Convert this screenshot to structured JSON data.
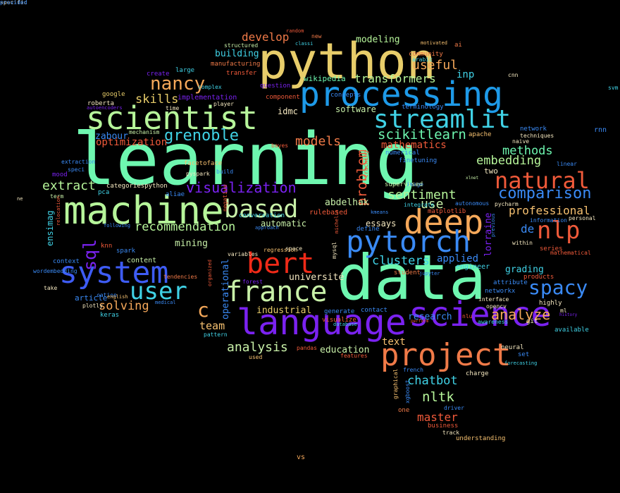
{
  "words": [
    {
      "t": "learning",
      "c": "#6ef7b0"
    },
    {
      "t": "data",
      "c": "#6ef7b0"
    },
    {
      "t": "python",
      "c": "#e8cd6a"
    },
    {
      "t": "machine",
      "c": "#b6f59a"
    },
    {
      "t": "processing",
      "c": "#1e9ae8"
    },
    {
      "t": "language",
      "c": "#7a22f0"
    },
    {
      "t": "science",
      "c": "#7a22f0"
    },
    {
      "t": "project",
      "c": "#f07a48"
    },
    {
      "t": "scientist",
      "c": "#b6f59a"
    },
    {
      "t": "deep",
      "c": "#f5a85a"
    },
    {
      "t": "pytorch",
      "c": "#3a8af5"
    },
    {
      "t": "system",
      "c": "#3e5cf5"
    },
    {
      "t": "bert",
      "c": "#f02a18"
    },
    {
      "t": "france",
      "c": "#c8f0a8"
    },
    {
      "t": "streamlit",
      "c": "#40d2e6"
    },
    {
      "t": "based",
      "c": "#c8f0a8"
    },
    {
      "t": "user",
      "c": "#40d2e6"
    },
    {
      "t": "nlp",
      "c": "#f05a3a"
    },
    {
      "t": "natural",
      "c": "#f05a3a"
    },
    {
      "t": "nancy",
      "c": "#f5a85a"
    },
    {
      "t": "spacy",
      "c": "#3a8af5"
    },
    {
      "t": "grenoble",
      "c": "#40d2e6"
    },
    {
      "t": "comparison",
      "c": "#3a8af5"
    },
    {
      "t": "visualization",
      "c": "#7a22f0"
    },
    {
      "t": "analyze",
      "c": "#f5a85a"
    },
    {
      "t": "scikitlearn",
      "c": "#6ef7b0"
    },
    {
      "t": "recommendation",
      "c": "#b6f59a"
    },
    {
      "t": "sentiment",
      "c": "#b6f59a"
    },
    {
      "t": "clusters",
      "c": "#40d2e6"
    },
    {
      "t": "analysis",
      "c": "#c8f0a8"
    },
    {
      "t": "embedding",
      "c": "#b6f59a"
    },
    {
      "t": "professional",
      "c": "#f5c070"
    },
    {
      "t": "transformers",
      "c": "#b6f59a"
    },
    {
      "t": "develop",
      "c": "#f07a48"
    },
    {
      "t": "useful",
      "c": "#f5a85a"
    },
    {
      "t": "extract",
      "c": "#b6f59a"
    },
    {
      "t": "methods",
      "c": "#6ef7b0"
    },
    {
      "t": "models",
      "c": "#f07a48"
    },
    {
      "t": "solving",
      "c": "#f5a85a"
    },
    {
      "t": "skills",
      "c": "#e8cd6a"
    },
    {
      "t": "chatbot",
      "c": "#40d2e6"
    },
    {
      "t": "nltk",
      "c": "#b6f59a"
    },
    {
      "t": "master",
      "c": "#f05a3a"
    },
    {
      "t": "team",
      "c": "#f5c070"
    },
    {
      "t": "université",
      "c": "#f5e8c0"
    },
    {
      "t": "optimization",
      "c": "#f05a3a"
    },
    {
      "t": "use",
      "c": "#c8f0a8"
    },
    {
      "t": "de",
      "c": "#3a8af5"
    },
    {
      "t": "c",
      "c": "#f5a85a"
    },
    {
      "t": "sql",
      "c": "#7a22f0"
    },
    {
      "t": "problem",
      "c": "#f05a3a"
    },
    {
      "t": "modeling",
      "c": "#b6f59a"
    },
    {
      "t": "building",
      "c": "#40d2e6"
    },
    {
      "t": "ensimag",
      "c": "#40d2e6"
    },
    {
      "t": "abdelhak",
      "c": "#c8f0a8"
    },
    {
      "t": "automatic",
      "c": "#c8f0a8"
    },
    {
      "t": "mining",
      "c": "#c8f0a8"
    },
    {
      "t": "industrial",
      "c": "#e8cd6a"
    },
    {
      "t": "education",
      "c": "#c8f0a8"
    },
    {
      "t": "essays",
      "c": "#f5e8c0"
    },
    {
      "t": "applied",
      "c": "#3a8af5"
    },
    {
      "t": "engineer",
      "c": "#40d2e6"
    },
    {
      "t": "grading",
      "c": "#40d2e6"
    },
    {
      "t": "research",
      "c": "#3a8af5"
    },
    {
      "t": "text",
      "c": "#f5c070"
    },
    {
      "t": "software",
      "c": "#c8f0a8"
    },
    {
      "t": "mathematics",
      "c": "#f05a3a"
    },
    {
      "t": "article",
      "c": "#3a8af5"
    },
    {
      "t": "zabour",
      "c": "#3a8af5"
    },
    {
      "t": "idmc",
      "c": "#f5e8c0"
    },
    {
      "t": "operational",
      "c": "#3a8af5"
    },
    {
      "t": "lorraine",
      "c": "#7a22f0"
    },
    {
      "t": "inp",
      "c": "#40d2e6"
    },
    {
      "t": "wikipedia",
      "c": "#6ef7b0"
    },
    {
      "t": "two",
      "c": "#f5e8c0"
    },
    {
      "t": "content",
      "c": "#c8f0a8"
    },
    {
      "t": "context",
      "c": "#3a8af5"
    },
    {
      "t": "knn",
      "c": "#f05a3a"
    },
    {
      "t": "spark",
      "c": "#3a8af5"
    },
    {
      "t": "vs",
      "c": "#f5a85a"
    },
    {
      "t": "rulebased",
      "c": "#f05a3a"
    },
    {
      "t": "categoriespython",
      "c": "#f5e8c0"
    },
    {
      "t": "aliae",
      "c": "#3a8af5"
    },
    {
      "t": "facetoface",
      "c": "#f5c070"
    },
    {
      "t": "conversation",
      "c": "#40d2e6"
    },
    {
      "t": "large",
      "c": "#40d2e6"
    },
    {
      "t": "create",
      "c": "#7a22f0"
    },
    {
      "t": "google",
      "c": "#e8cd6a"
    },
    {
      "t": "roberta",
      "c": "#f5e8c0"
    },
    {
      "t": "implementation",
      "c": "#7a22f0"
    },
    {
      "t": "community",
      "c": "#f07a48"
    },
    {
      "t": "manufacturing",
      "c": "#f07a48"
    },
    {
      "t": "transfer",
      "c": "#f05a3a"
    },
    {
      "t": "question",
      "c": "#7a22f0"
    },
    {
      "t": "component",
      "c": "#f05a3a"
    },
    {
      "t": "terminology",
      "c": "#3a8af5"
    },
    {
      "t": "network",
      "c": "#3a8af5"
    },
    {
      "t": "techniques",
      "c": "#f5e8c0"
    },
    {
      "t": "naive",
      "c": "#f5e8c0"
    },
    {
      "t": "linear",
      "c": "#3a8af5"
    },
    {
      "t": "rnn",
      "c": "#3a8af5"
    },
    {
      "t": "svm",
      "c": "#40d2e6"
    },
    {
      "t": "cnn",
      "c": "#f5e8c0"
    },
    {
      "t": "ai",
      "c": "#f07a48"
    },
    {
      "t": "arabic",
      "c": "#40d2e6"
    },
    {
      "t": "motivated",
      "c": "#f5c070"
    },
    {
      "t": "random",
      "c": "#f05a3a"
    },
    {
      "t": "new",
      "c": "#f07a48"
    },
    {
      "t": "classi",
      "c": "#40d2e6"
    },
    {
      "t": "structured",
      "c": "#c8f0a8"
    },
    {
      "t": "complex",
      "c": "#40d2e6"
    },
    {
      "t": "time",
      "c": "#f5e8c0"
    },
    {
      "t": "player",
      "c": "#f5e8c0"
    },
    {
      "t": "concepts",
      "c": "#3a8af5"
    },
    {
      "t": "autoencoders",
      "c": "#7a22f0"
    },
    {
      "t": "mechanism",
      "c": "#c8f0a8"
    },
    {
      "t": "bayes",
      "c": "#f05a3a"
    },
    {
      "t": "numerical",
      "c": "#3a8af5"
    },
    {
      "t": "finetuning",
      "c": "#3a8af5"
    },
    {
      "t": "tracking",
      "c": "#f05a3a"
    },
    {
      "t": "apache",
      "c": "#f5c070"
    },
    {
      "t": "mood",
      "c": "#7a22f0"
    },
    {
      "t": "speci",
      "c": "#3a8af5"
    },
    {
      "t": "term",
      "c": "#c8f0a8"
    },
    {
      "t": "extraction",
      "c": "#3a8af5"
    },
    {
      "t": "pyspark",
      "c": "#f5e8c0"
    },
    {
      "t": "build",
      "c": "#3a8af5"
    },
    {
      "t": "ne",
      "c": "#f5e8c0"
    },
    {
      "t": "pca",
      "c": "#40d2e6"
    },
    {
      "t": "negative",
      "c": "#f05a3a"
    },
    {
      "t": "image",
      "c": "#3a8af5"
    },
    {
      "t": "supervised",
      "c": "#c8f0a8"
    },
    {
      "t": "xlnet",
      "c": "#c8f0a8"
    },
    {
      "t": "relocation",
      "c": "#f05a3a"
    },
    {
      "t": "following",
      "c": "#3a8af5"
    },
    {
      "t": "approach",
      "c": "#3a8af5"
    },
    {
      "t": "kmeans",
      "c": "#3a8af5"
    },
    {
      "t": "autonomous",
      "c": "#3a8af5"
    },
    {
      "t": "matplotlib",
      "c": "#f05a3a"
    },
    {
      "t": "pycharm",
      "c": "#f5e8c0"
    },
    {
      "t": "information",
      "c": "#3a8af5"
    },
    {
      "t": "personal",
      "c": "#f5e8c0"
    },
    {
      "t": "define",
      "c": "#3a8af5"
    },
    {
      "t": "integrate",
      "c": "#40d2e6"
    },
    {
      "t": "previous",
      "c": "#3a8af5"
    },
    {
      "t": "within",
      "c": "#f5e8c0"
    },
    {
      "t": "series",
      "c": "#f05a3a"
    },
    {
      "t": "mathematical",
      "c": "#f05a3a"
    },
    {
      "t": "variables",
      "c": "#f5e8c0"
    },
    {
      "t": "regression",
      "c": "#f5c070"
    },
    {
      "t": "space",
      "c": "#f5e8c0"
    },
    {
      "t": "mysql",
      "c": "#f5e8c0"
    },
    {
      "t": "michelin",
      "c": "#f05a3a"
    },
    {
      "t": "student",
      "c": "#f07a48"
    },
    {
      "t": "jupyter",
      "c": "#3a8af5"
    },
    {
      "t": "products",
      "c": "#f05a3a"
    },
    {
      "t": "wordembedding",
      "c": "#3a8af5"
    },
    {
      "t": "tendencies",
      "c": "#f07a48"
    },
    {
      "t": "cation",
      "c": "#3a8af5"
    },
    {
      "t": "keras",
      "c": "#40d2e6"
    },
    {
      "t": "plotly",
      "c": "#f5e8c0"
    },
    {
      "t": "medical",
      "c": "#3a8af5"
    },
    {
      "t": "take",
      "c": "#f5e8c0"
    },
    {
      "t": "english",
      "c": "#f5c070"
    },
    {
      "t": "organized",
      "c": "#f05a3a"
    },
    {
      "t": "forest",
      "c": "#7a22f0"
    },
    {
      "t": "generate",
      "c": "#3a8af5"
    },
    {
      "t": "contact",
      "c": "#3a8af5"
    },
    {
      "t": "visualize",
      "c": "#f05a3a"
    },
    {
      "t": "database",
      "c": "#40d2e6"
    },
    {
      "t": "pattern",
      "c": "#40d2e6"
    },
    {
      "t": "pandas",
      "c": "#f05a3a"
    },
    {
      "t": "features",
      "c": "#f05a3a"
    },
    {
      "t": "used",
      "c": "#f5c070"
    },
    {
      "t": "nlu",
      "c": "#f05a3a"
    },
    {
      "t": "awareness",
      "c": "#40d2e6"
    },
    {
      "t": "opencv",
      "c": "#f5e8c0"
    },
    {
      "t": "interface",
      "c": "#f5e8c0"
    },
    {
      "t": "networkx",
      "c": "#3a8af5"
    },
    {
      "t": "attribute",
      "c": "#3a8af5"
    },
    {
      "t": "highly",
      "c": "#f5e8c0"
    },
    {
      "t": "ml",
      "c": "#f5e8c0"
    },
    {
      "t": "history",
      "c": "#7a22f0"
    },
    {
      "t": "git",
      "c": "#f5e8c0"
    },
    {
      "t": "available",
      "c": "#40d2e6"
    },
    {
      "t": "neural",
      "c": "#f5e8c0"
    },
    {
      "t": "set",
      "c": "#3a8af5"
    },
    {
      "t": "forecasting",
      "c": "#40d2e6"
    },
    {
      "t": "charge",
      "c": "#f5e8c0"
    },
    {
      "t": "french",
      "c": "#3a8af5"
    },
    {
      "t": "graphical",
      "c": "#f5c070"
    },
    {
      "t": "xgboost",
      "c": "#3a8af5"
    },
    {
      "t": "perform",
      "c": "#f05a3a"
    },
    {
      "t": "one",
      "c": "#f07a48"
    },
    {
      "t": "driver",
      "c": "#3a8af5"
    },
    {
      "t": "business",
      "c": "#f05a3a"
    },
    {
      "t": "track",
      "c": "#f5e8c0"
    },
    {
      "t": "understanding",
      "c": "#f5c070"
    },
    {
      "t": "specific",
      "c": "#f5e8c0"
    },
    {
      "t": "provided",
      "c": "#3a8af5"
    }
  ]
}
